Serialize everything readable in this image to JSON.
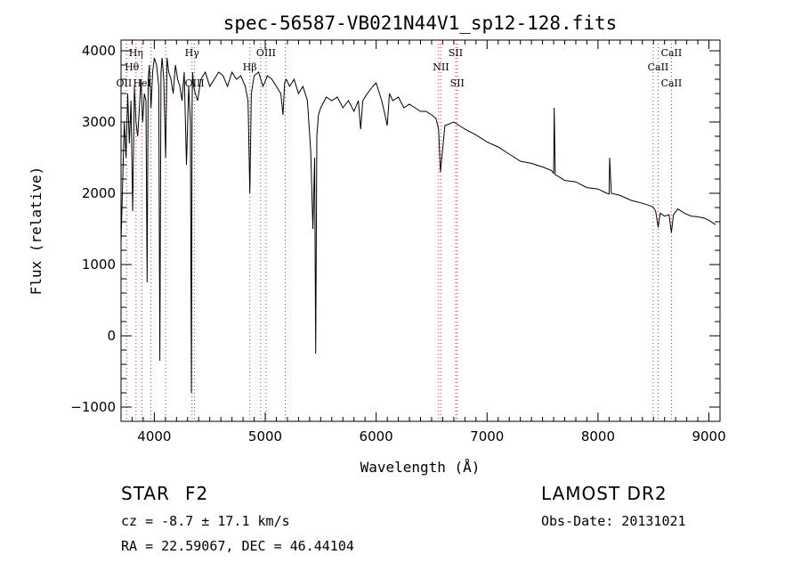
{
  "chart_data": {
    "type": "line",
    "title": "spec-56587-VB021N44V1_sp12-128.fits",
    "xlabel": "Wavelength (Å)",
    "ylabel": "Flux (relative)",
    "xlim": [
      3700,
      9100
    ],
    "ylim": [
      -1200,
      4150
    ],
    "xticks": [
      4000,
      5000,
      6000,
      7000,
      8000,
      9000
    ],
    "yticks": [
      -1000,
      0,
      1000,
      2000,
      3000,
      4000
    ],
    "grid": false,
    "series": [
      {
        "color": "#000000",
        "x": [
          3700,
          3715,
          3730,
          3745,
          3760,
          3775,
          3790,
          3805,
          3820,
          3835,
          3850,
          3865,
          3880,
          3895,
          3910,
          3925,
          3935,
          3945,
          3955,
          3970,
          3985,
          4000,
          4020,
          4040,
          4050,
          4060,
          4070,
          4085,
          4102,
          4115,
          4130,
          4150,
          4170,
          4190,
          4210,
          4230,
          4250,
          4270,
          4290,
          4310,
          4325,
          4335,
          4340,
          4345,
          4355,
          4370,
          4390,
          4420,
          4460,
          4500,
          4540,
          4580,
          4620,
          4660,
          4700,
          4740,
          4780,
          4820,
          4845,
          4861,
          4875,
          4900,
          4940,
          4980,
          5020,
          5060,
          5100,
          5140,
          5160,
          5175,
          5190,
          5220,
          5260,
          5300,
          5340,
          5380,
          5410,
          5430,
          5445,
          5455,
          5465,
          5480,
          5500,
          5550,
          5600,
          5650,
          5700,
          5750,
          5800,
          5840,
          5860,
          5880,
          5920,
          5970,
          6000,
          6050,
          6080,
          6100,
          6120,
          6150,
          6200,
          6250,
          6300,
          6350,
          6400,
          6450,
          6500,
          6540,
          6563,
          6580,
          6620,
          6700,
          6800,
          6900,
          7000,
          7100,
          7200,
          7300,
          7400,
          7500,
          7580,
          7600,
          7605,
          7615,
          7640,
          7700,
          7800,
          7900,
          8000,
          8080,
          8100,
          8105,
          8120,
          8200,
          8300,
          8400,
          8480,
          8500,
          8520,
          8542,
          8560,
          8600,
          8640,
          8662,
          8680,
          8720,
          8780,
          8840,
          8900,
          8960,
          9000,
          9040,
          9060
        ],
        "y": [
          1300,
          2200,
          3000,
          2500,
          3400,
          2700,
          3300,
          1750,
          3500,
          3000,
          2800,
          3200,
          3600,
          3000,
          3400,
          3300,
          750,
          3600,
          3800,
          3200,
          3700,
          3900,
          3800,
          3500,
          -350,
          3700,
          3900,
          3600,
          2500,
          3900,
          3700,
          3600,
          3400,
          3800,
          3600,
          3500,
          3300,
          3700,
          2400,
          3500,
          3000,
          -800,
          3200,
          3700,
          3500,
          3400,
          3300,
          3600,
          3700,
          3500,
          3600,
          3700,
          3650,
          3500,
          3700,
          3600,
          3650,
          3500,
          3300,
          2000,
          3400,
          3650,
          3700,
          3500,
          3650,
          3600,
          3500,
          3400,
          3100,
          3550,
          3600,
          3500,
          3600,
          3400,
          3500,
          3300,
          2600,
          1500,
          2500,
          -250,
          2800,
          3100,
          3200,
          3350,
          3300,
          3350,
          3200,
          3300,
          3150,
          3300,
          2900,
          3300,
          3400,
          3500,
          3550,
          3300,
          3100,
          2950,
          3400,
          3300,
          3350,
          3200,
          3250,
          3200,
          3150,
          3150,
          3100,
          3050,
          2900,
          2300,
          2950,
          3000,
          2900,
          2820,
          2720,
          2650,
          2550,
          2450,
          2420,
          2370,
          2320,
          2280,
          3200,
          2260,
          2240,
          2180,
          2160,
          2080,
          2060,
          2000,
          1990,
          2500,
          2000,
          1970,
          1900,
          1860,
          1820,
          1800,
          1750,
          1520,
          1720,
          1680,
          1700,
          1450,
          1700,
          1780,
          1720,
          1680,
          1670,
          1650,
          1620,
          1580,
          1560
        ]
      }
    ],
    "line_markers": {
      "color": "#cc3333",
      "x": [
        3750,
        3835,
        3889,
        3970,
        4102,
        4340,
        4363,
        4861,
        4959,
        5007,
        5180,
        6563,
        6584,
        6717,
        6731,
        8498,
        8542,
        8662
      ],
      "labels": [
        {
          "text": "Hη",
          "x": 3835,
          "row": 1
        },
        {
          "text": "Hθ",
          "x": 3798,
          "row": 2
        },
        {
          "text": "OII",
          "x": 3727,
          "row": 3
        },
        {
          "text": "HeI",
          "x": 3890,
          "row": 3
        },
        {
          "text": "Hγ",
          "x": 4340,
          "row": 1
        },
        {
          "text": "OIII",
          "x": 4363,
          "row": 3
        },
        {
          "text": "OIII",
          "x": 5007,
          "row": 1
        },
        {
          "text": "Hβ",
          "x": 4861,
          "row": 2
        },
        {
          "text": "SII",
          "x": 6717,
          "row": 1
        },
        {
          "text": "NII",
          "x": 6584,
          "row": 2
        },
        {
          "text": "SII",
          "x": 6731,
          "row": 3
        },
        {
          "text": "CaII",
          "x": 8662,
          "row": 1
        },
        {
          "text": "CaII",
          "x": 8542,
          "row": 2
        },
        {
          "text": "CaII",
          "x": 8662,
          "row": 3
        }
      ]
    }
  },
  "info": {
    "object_class": "STAR",
    "subclass": "F2",
    "survey": "LAMOST DR2",
    "redshift": "cz = -8.7 ± 17.1 km/s",
    "obs_date": "Obs-Date: 20131021",
    "coords": "RA =  22.59067, DEC =  46.44104"
  }
}
